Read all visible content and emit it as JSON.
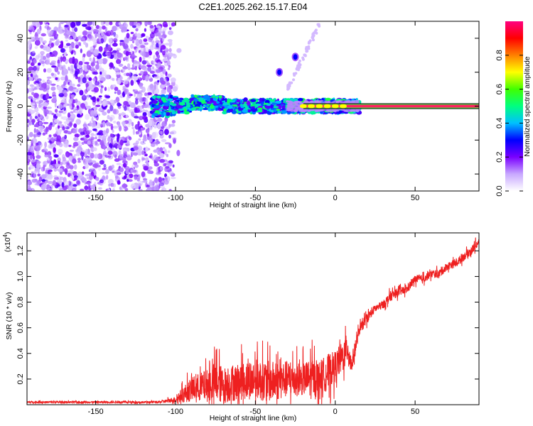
{
  "title": "C2E1.2025.262.15.17.E04",
  "chart_data": [
    {
      "type": "heatmap",
      "title": "C2E1.2025.262.15.17.E04",
      "xlabel": "Height of straight line (km)",
      "ylabel": "Frequency (Hz)",
      "xlim": [
        -193,
        90
      ],
      "ylim": [
        -50,
        50
      ],
      "xticks": [
        -150,
        -100,
        -50,
        0,
        50
      ],
      "yticks": [
        -40,
        -20,
        0,
        20,
        40
      ],
      "xtick_labels": [
        "-150",
        "-100",
        "-50",
        "0",
        "50"
      ],
      "ytick_labels": [
        "-40",
        "-20",
        "0",
        "20",
        "40"
      ],
      "features": {
        "noise_region_x": [
          -193,
          -103
        ],
        "main_band_x": [
          -115,
          15
        ],
        "main_band_freq": 0,
        "strong_line_x": [
          -20,
          90
        ],
        "branch_points": [
          [
            -35,
            20
          ],
          [
            -25,
            29
          ]
        ],
        "branch_line_x": [
          -30,
          -10
        ]
      },
      "colorbar": {
        "label": "Normalized spectral amplitude",
        "range": [
          0,
          1
        ],
        "ticks": [
          0.0,
          0.2,
          0.4,
          0.6,
          0.8
        ],
        "tick_labels": [
          "0.0",
          "0.2",
          "0.4",
          "0.6",
          "0.8"
        ],
        "colors": [
          "#ffffff",
          "#c8a8ff",
          "#7a00ff",
          "#0000ff",
          "#00c0ff",
          "#00ff80",
          "#40ff00",
          "#ffff00",
          "#ff8000",
          "#ff0000",
          "#ff0080"
        ]
      }
    },
    {
      "type": "line",
      "xlabel": "Height of straight line (km)",
      "ylabel": "SNR (10 * v/v)",
      "y_multiplier": "(x10",
      "y_multiplier_exp": "4",
      "y_multiplier_close": ")",
      "xlim": [
        -193,
        90
      ],
      "ylim": [
        0,
        1.34
      ],
      "xticks": [
        -150,
        -100,
        -50,
        0,
        50
      ],
      "xtick_labels": [
        "-150",
        "-100",
        "-50",
        "0",
        "50"
      ],
      "yticks": [
        0.2,
        0.4,
        0.6,
        0.8,
        1.0,
        1.2
      ],
      "ytick_labels": [
        "0.2",
        "0.4",
        "0.6",
        "0.8",
        "1.0",
        "1.2"
      ],
      "series": [
        {
          "name": "SNR",
          "color": "#ee2020",
          "x": [
            -193,
            -150,
            -110,
            -100,
            -95,
            -90,
            -80,
            -75,
            -70,
            -60,
            -50,
            -40,
            -30,
            -20,
            -15,
            -10,
            -5,
            0,
            5,
            8,
            10,
            15,
            20,
            25,
            30,
            35,
            40,
            45,
            50,
            55,
            60,
            65,
            70,
            75,
            80,
            85,
            90
          ],
          "y": [
            0.02,
            0.02,
            0.02,
            0.04,
            0.08,
            0.12,
            0.15,
            0.18,
            0.15,
            0.18,
            0.2,
            0.18,
            0.2,
            0.2,
            0.2,
            0.22,
            0.25,
            0.3,
            0.38,
            0.45,
            0.3,
            0.58,
            0.68,
            0.75,
            0.78,
            0.85,
            0.88,
            0.9,
            0.98,
            0.98,
            1.02,
            1.02,
            1.08,
            1.1,
            1.15,
            1.2,
            1.27
          ],
          "noise_amplitude": [
            0.01,
            0.01,
            0.01,
            0.03,
            0.08,
            0.12,
            0.16,
            0.2,
            0.18,
            0.18,
            0.2,
            0.2,
            0.18,
            0.16,
            0.2,
            0.15,
            0.18,
            0.15,
            0.15,
            0.15,
            0.1,
            0.05,
            0.05,
            0.04,
            0.04,
            0.05,
            0.04,
            0.04,
            0.04,
            0.04,
            0.04,
            0.04,
            0.04,
            0.04,
            0.04,
            0.04,
            0.04
          ]
        }
      ]
    }
  ]
}
